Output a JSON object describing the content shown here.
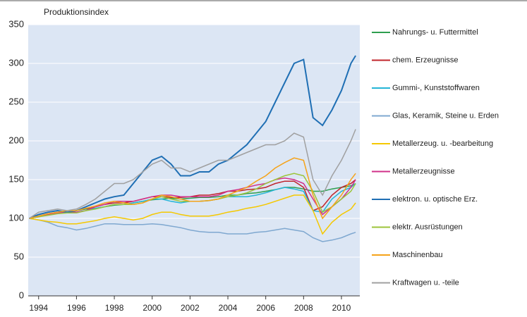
{
  "chart_data": {
    "type": "line",
    "title": "Produktionsindex",
    "x": [
      1993.5,
      1994,
      1994.5,
      1995,
      1995.5,
      1996,
      1996.5,
      1997,
      1997.5,
      1998,
      1998.5,
      1999,
      1999.5,
      2000,
      2000.5,
      2001,
      2001.5,
      2002,
      2002.5,
      2003,
      2003.5,
      2004,
      2004.5,
      2005,
      2005.5,
      2006,
      2006.5,
      2007,
      2007.5,
      2008,
      2008.5,
      2009,
      2009.5,
      2010,
      2010.5,
      2010.75
    ],
    "xlim": [
      1993.45,
      2010.97
    ],
    "xticks": [
      1994,
      1996,
      1998,
      2000,
      2002,
      2004,
      2006,
      2008,
      2010
    ],
    "ylim": [
      0,
      350
    ],
    "yticks": [
      0,
      50,
      100,
      150,
      200,
      250,
      300,
      350
    ],
    "grid": true,
    "series": [
      {
        "name": "Nahrungs- u. Futtermittel",
        "color": "#2e9e4f",
        "values": [
          100,
          102,
          105,
          107,
          108,
          110,
          112,
          113,
          115,
          117,
          118,
          120,
          122,
          124,
          125,
          126,
          125,
          126,
          127,
          127,
          128,
          130,
          130,
          132,
          133,
          135,
          137,
          140,
          140,
          138,
          135,
          135,
          138,
          140,
          142,
          145
        ]
      },
      {
        "name": "chem. Erzeugnisse",
        "color": "#c0242b",
        "values": [
          100,
          103,
          106,
          108,
          108,
          110,
          113,
          115,
          118,
          120,
          120,
          122,
          125,
          128,
          128,
          127,
          127,
          128,
          130,
          130,
          132,
          135,
          135,
          137,
          138,
          140,
          145,
          148,
          148,
          140,
          110,
          115,
          130,
          140,
          145,
          150
        ]
      },
      {
        "name": "Gummi-, Kunststoffwaren",
        "color": "#24b5d6",
        "values": [
          100,
          103,
          105,
          107,
          108,
          108,
          110,
          113,
          115,
          118,
          118,
          120,
          122,
          125,
          125,
          122,
          120,
          122,
          122,
          123,
          125,
          128,
          128,
          128,
          130,
          133,
          137,
          140,
          138,
          135,
          110,
          108,
          125,
          135,
          140,
          145
        ]
      },
      {
        "name": "Glas, Keramik, Steine u. Erden",
        "color": "#7fa8d0",
        "values": [
          100,
          98,
          95,
          90,
          88,
          85,
          87,
          90,
          93,
          93,
          92,
          92,
          92,
          93,
          92,
          90,
          88,
          85,
          83,
          82,
          82,
          80,
          80,
          80,
          82,
          83,
          85,
          87,
          85,
          83,
          75,
          70,
          72,
          75,
          80,
          82
        ]
      },
      {
        "name": "Metallerzeug. u. -bearbeitung",
        "color": "#f5c800",
        "values": [
          100,
          98,
          96,
          95,
          93,
          93,
          95,
          97,
          100,
          102,
          100,
          98,
          100,
          105,
          108,
          108,
          105,
          103,
          103,
          103,
          105,
          108,
          110,
          113,
          115,
          118,
          122,
          126,
          130,
          130,
          110,
          80,
          95,
          105,
          112,
          120
        ]
      },
      {
        "name": "Metallerzeugnisse",
        "color": "#d0308a",
        "values": [
          100,
          102,
          105,
          107,
          108,
          108,
          110,
          115,
          118,
          122,
          122,
          122,
          125,
          128,
          130,
          130,
          128,
          128,
          128,
          128,
          130,
          135,
          137,
          140,
          143,
          145,
          150,
          152,
          150,
          145,
          125,
          105,
          115,
          125,
          140,
          150
        ]
      },
      {
        "name": "elektron. u. optische Erz.",
        "color": "#1f6fb4",
        "values": [
          100,
          105,
          108,
          110,
          108,
          110,
          115,
          120,
          125,
          128,
          130,
          145,
          160,
          175,
          180,
          170,
          155,
          155,
          160,
          160,
          170,
          175,
          185,
          195,
          210,
          225,
          250,
          275,
          300,
          305,
          230,
          220,
          240,
          265,
          300,
          310
        ]
      },
      {
        "name": "elektr. Ausrüstungen",
        "color": "#9cc43a",
        "values": [
          100,
          102,
          104,
          106,
          107,
          107,
          110,
          112,
          115,
          118,
          118,
          118,
          120,
          125,
          128,
          125,
          122,
          122,
          122,
          123,
          125,
          128,
          130,
          133,
          138,
          145,
          150,
          155,
          158,
          155,
          135,
          108,
          115,
          125,
          135,
          145
        ]
      },
      {
        "name": "Maschinenbau",
        "color": "#f5a31a",
        "values": [
          100,
          103,
          106,
          108,
          110,
          110,
          113,
          116,
          120,
          122,
          120,
          118,
          120,
          125,
          130,
          128,
          125,
          122,
          122,
          123,
          125,
          130,
          135,
          140,
          148,
          155,
          165,
          172,
          178,
          175,
          130,
          100,
          115,
          130,
          150,
          158
        ]
      },
      {
        "name": "Kraftwagen u. -teile",
        "color": "#a0a0a0",
        "values": [
          100,
          108,
          110,
          112,
          110,
          112,
          118,
          125,
          135,
          145,
          145,
          150,
          160,
          170,
          175,
          165,
          165,
          160,
          165,
          170,
          175,
          175,
          180,
          185,
          190,
          195,
          195,
          200,
          210,
          205,
          150,
          130,
          155,
          175,
          200,
          215
        ]
      }
    ]
  }
}
